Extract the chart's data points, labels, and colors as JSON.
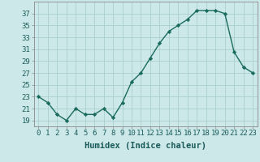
{
  "xlabel": "Humidex (Indice chaleur)",
  "x": [
    0,
    1,
    2,
    3,
    4,
    5,
    6,
    7,
    8,
    9,
    10,
    11,
    12,
    13,
    14,
    15,
    16,
    17,
    18,
    19,
    20,
    21,
    22,
    23
  ],
  "y": [
    23,
    22,
    20,
    19,
    21,
    20,
    20,
    21,
    19.5,
    22,
    25.5,
    27,
    29.5,
    32,
    34,
    35,
    36,
    37.5,
    37.5,
    37.5,
    37,
    30.5,
    28,
    27
  ],
  "line_color": "#1a6b5e",
  "marker": "D",
  "marker_size": 2.2,
  "background_color": "#cce8e8",
  "grid_color": "#aacece",
  "ylim": [
    18,
    39
  ],
  "yticks": [
    19,
    21,
    23,
    25,
    27,
    29,
    31,
    33,
    35,
    37
  ],
  "xlim": [
    -0.5,
    23.5
  ],
  "xticks": [
    0,
    1,
    2,
    3,
    4,
    5,
    6,
    7,
    8,
    9,
    10,
    11,
    12,
    13,
    14,
    15,
    16,
    17,
    18,
    19,
    20,
    21,
    22,
    23
  ],
  "tick_label_fontsize": 6.5,
  "xlabel_fontsize": 7.5,
  "line_width": 1.0
}
